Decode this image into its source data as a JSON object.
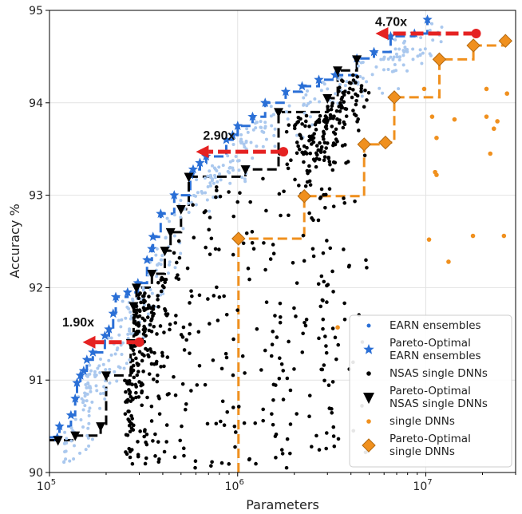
{
  "chart_data": {
    "type": "scatter",
    "xscale": "log",
    "xlim": [
      100000,
      30000000
    ],
    "ylim": [
      90,
      95
    ],
    "xlabel": "Parameters",
    "ylabel": "Accuracy %",
    "xticks": [
      {
        "value": 100000,
        "base": "10",
        "exp": "5"
      },
      {
        "value": 1000000,
        "base": "10",
        "exp": "6"
      },
      {
        "value": 10000000,
        "base": "10",
        "exp": "7"
      }
    ],
    "yticks": [
      "90",
      "91",
      "92",
      "93",
      "94",
      "95"
    ],
    "grid": true,
    "legend_position": "bottom-right",
    "colors": {
      "earn_light": "#aac8ee",
      "earn_star": "#2a6fd6",
      "nsas": "#000000",
      "single": "#f0901e",
      "arrow": "#e52222"
    },
    "legend": [
      {
        "series": "earn",
        "lines": [
          "EARN ensembles"
        ]
      },
      {
        "series": "earn_pareto",
        "lines": [
          "Pareto-Optimal",
          "EARN ensembles"
        ]
      },
      {
        "series": "nsas",
        "lines": [
          "NSAS single DNNs"
        ]
      },
      {
        "series": "nsas_pareto",
        "lines": [
          "Pareto-Optimal",
          "NSAS single DNNs"
        ]
      },
      {
        "series": "single",
        "lines": [
          "single DNNs"
        ]
      },
      {
        "series": "single_pareto",
        "lines": [
          "Pareto-Optimal",
          "single DNNs"
        ]
      }
    ],
    "pareto_earn": [
      [
        110000,
        90.38
      ],
      [
        113000,
        90.5
      ],
      [
        130000,
        90.62
      ],
      [
        137000,
        90.8
      ],
      [
        140000,
        90.97
      ],
      [
        146000,
        91.05
      ],
      [
        152000,
        91.1
      ],
      [
        158000,
        91.22
      ],
      [
        170000,
        91.3
      ],
      [
        197000,
        91.48
      ],
      [
        207000,
        91.55
      ],
      [
        218000,
        91.72
      ],
      [
        225000,
        91.9
      ],
      [
        260000,
        91.95
      ],
      [
        295000,
        92.05
      ],
      [
        330000,
        92.3
      ],
      [
        350000,
        92.42
      ],
      [
        355000,
        92.55
      ],
      [
        390000,
        92.8
      ],
      [
        460000,
        93.0
      ],
      [
        560000,
        93.22
      ],
      [
        580000,
        93.28
      ],
      [
        630000,
        93.35
      ],
      [
        680000,
        93.42
      ],
      [
        870000,
        93.6
      ],
      [
        940000,
        93.65
      ],
      [
        1000000,
        93.75
      ],
      [
        1200000,
        93.85
      ],
      [
        1400000,
        94.0
      ],
      [
        1800000,
        94.12
      ],
      [
        2200000,
        94.18
      ],
      [
        2700000,
        94.25
      ],
      [
        3300000,
        94.3
      ],
      [
        4300000,
        94.48
      ],
      [
        5300000,
        94.55
      ],
      [
        6500000,
        94.72
      ],
      [
        8700000,
        94.75
      ],
      [
        10200000,
        94.9
      ]
    ],
    "pareto_nsas": [
      [
        111000,
        90.35
      ],
      [
        137000,
        90.4
      ],
      [
        187000,
        90.5
      ],
      [
        200000,
        91.05
      ],
      [
        270000,
        91.4
      ],
      [
        280000,
        91.8
      ],
      [
        290000,
        92.0
      ],
      [
        350000,
        92.15
      ],
      [
        410000,
        92.4
      ],
      [
        440000,
        92.6
      ],
      [
        500000,
        92.85
      ],
      [
        550000,
        93.2
      ],
      [
        1100000,
        93.28
      ],
      [
        1650000,
        93.9
      ],
      [
        3000000,
        94.05
      ],
      [
        3400000,
        94.35
      ],
      [
        4300000,
        94.47
      ]
    ],
    "pareto_single": [
      [
        1010000,
        92.53
      ],
      [
        2260000,
        92.99
      ],
      [
        4700000,
        93.55
      ],
      [
        6100000,
        93.57
      ],
      [
        6800000,
        94.06
      ],
      [
        11800000,
        94.47
      ],
      [
        17900000,
        94.62
      ],
      [
        26500000,
        94.67
      ]
    ],
    "single_other": [
      [
        3400000,
        91.57
      ],
      [
        10400000,
        92.52
      ],
      [
        13200000,
        92.28
      ],
      [
        17800000,
        92.56
      ],
      [
        26000000,
        92.56
      ],
      [
        11200000,
        93.25
      ],
      [
        11400000,
        93.22
      ],
      [
        22000000,
        93.45
      ],
      [
        11400000,
        93.62
      ],
      [
        14200000,
        93.82
      ],
      [
        21000000,
        93.85
      ],
      [
        23000000,
        93.72
      ],
      [
        24000000,
        93.8
      ],
      [
        21000000,
        94.15
      ],
      [
        27000000,
        94.1
      ],
      [
        10800000,
        93.85
      ],
      [
        9800000,
        94.15
      ]
    ],
    "annotations": [
      {
        "text": "1.90x",
        "label_x": 100000,
        "label_y": 91.58,
        "x_from": 300000,
        "x_to": 150000,
        "y": 91.41
      },
      {
        "text": "2.90x",
        "label_x": 560000,
        "label_y": 93.6,
        "x_from": 1750000,
        "x_to": 600000,
        "y": 93.47
      },
      {
        "text": "4.70x",
        "label_x": 4600000,
        "label_y": 94.83,
        "x_from": 18500000,
        "x_to": 5400000,
        "y": 94.75
      }
    ]
  }
}
